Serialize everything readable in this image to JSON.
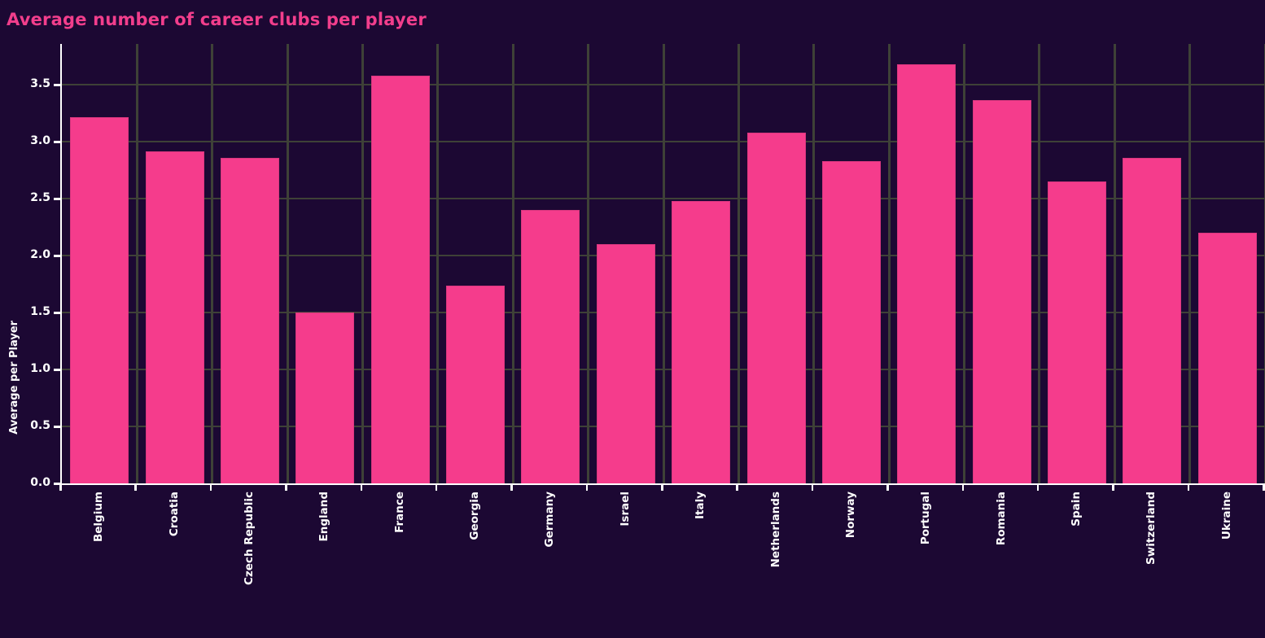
{
  "title": "Average number of career clubs per player",
  "colors": {
    "background": "#1c0833",
    "bar_fill": "#f53c8c",
    "bar_border": "#d9377f",
    "gridline": "#3e4137",
    "axis": "#ffffff",
    "tick_text": "#ffffff",
    "title_text": "#f23e8c"
  },
  "chart_data": {
    "type": "bar",
    "title": "Average number of career clubs per player",
    "xlabel": "",
    "ylabel": "Average per Player",
    "categories": [
      "Belgium",
      "Croatia",
      "Czech Republic",
      "England",
      "France",
      "Georgia",
      "Germany",
      "Israel",
      "Italy",
      "Netherlands",
      "Norway",
      "Portugal",
      "Romania",
      "Spain",
      "Switzerland",
      "Ukraine"
    ],
    "values": [
      3.22,
      2.92,
      2.86,
      1.5,
      3.58,
      1.74,
      2.4,
      2.1,
      2.48,
      3.08,
      2.83,
      3.68,
      3.37,
      2.65,
      2.86,
      2.2
    ],
    "yticks": [
      0.0,
      0.5,
      1.0,
      1.5,
      2.0,
      2.5,
      3.0,
      3.5
    ],
    "ylim": [
      0,
      3.86
    ],
    "grid": true,
    "legend": false
  }
}
